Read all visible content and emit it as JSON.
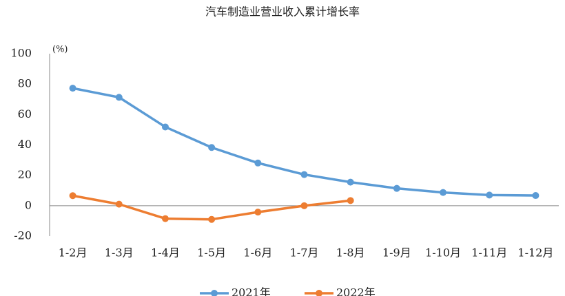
{
  "chart_data": {
    "type": "line",
    "title": "汽车制造业营业收入累计增长率",
    "unit": "(%)",
    "categories": [
      "1-2月",
      "1-3月",
      "1-4月",
      "1-5月",
      "1-6月",
      "1-7月",
      "1-8月",
      "1-9月",
      "1-10月",
      "1-11月",
      "1-12月"
    ],
    "series": [
      {
        "name": "2021年",
        "color": "#5b9bd5",
        "values": [
          77.3,
          71.3,
          51.8,
          38.3,
          28.1,
          20.5,
          15.5,
          11.4,
          8.7,
          7.0,
          6.7
        ]
      },
      {
        "name": "2022年",
        "color": "#ed7d31",
        "values": [
          6.6,
          1.0,
          -8.5,
          -9.0,
          -4.2,
          0.0,
          3.4,
          null,
          null,
          null,
          null
        ]
      }
    ],
    "ylim": [
      -20,
      100
    ],
    "yticks": [
      -20,
      0,
      20,
      40,
      60,
      80,
      100
    ],
    "grid": false,
    "legend": "bottom"
  }
}
